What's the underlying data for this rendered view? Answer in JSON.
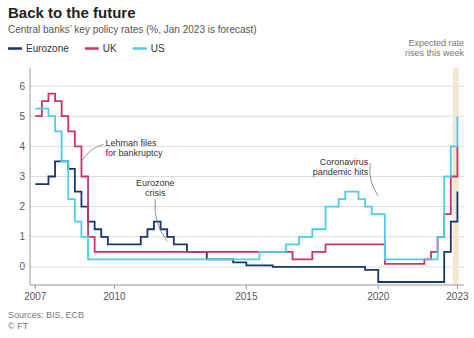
{
  "chart_data": {
    "type": "line",
    "title": "Back to the future",
    "subtitle": "Central banks’ key policy rates (%, Jan 2023 is forecast)",
    "sources": "Sources: BIS, ECB\n© FT",
    "legend": "top",
    "grid": true,
    "line_style": "steps",
    "series": [
      {
        "name": "Eurozone",
        "color": "#1a3668",
        "x": [
          2007.0,
          2007.5,
          2007.75,
          2008.0,
          2008.25,
          2008.5,
          2008.75,
          2009.0,
          2009.25,
          2009.5,
          2009.75,
          2010.0,
          2010.5,
          2011.0,
          2011.25,
          2011.5,
          2011.75,
          2012.0,
          2012.25,
          2012.75,
          2013.0,
          2013.5,
          2014.0,
          2014.5,
          2015.0,
          2016.0,
          2017.0,
          2018.0,
          2019.0,
          2019.5,
          2020.0,
          2021.0,
          2022.0,
          2022.5,
          2022.75,
          2023.0
        ],
        "values": [
          2.75,
          3.0,
          3.5,
          3.5,
          3.25,
          2.5,
          2.0,
          1.5,
          1.25,
          1.0,
          0.75,
          0.75,
          0.75,
          1.0,
          1.25,
          1.5,
          1.25,
          1.0,
          0.75,
          0.5,
          0.5,
          0.25,
          0.25,
          0.15,
          0.05,
          0.0,
          0.0,
          0.0,
          0.0,
          -0.1,
          -0.5,
          -0.5,
          -0.5,
          0.5,
          1.5,
          2.5
        ]
      },
      {
        "name": "UK",
        "color": "#cc3366",
        "x": [
          2007.0,
          2007.25,
          2007.5,
          2007.75,
          2008.0,
          2008.25,
          2008.5,
          2008.75,
          2009.0,
          2009.25,
          2009.5,
          2010.0,
          2011.0,
          2012.0,
          2013.0,
          2014.0,
          2015.0,
          2016.0,
          2016.75,
          2017.5,
          2018.0,
          2018.75,
          2019.0,
          2020.0,
          2020.25,
          2021.0,
          2021.75,
          2022.0,
          2022.25,
          2022.5,
          2022.75,
          2023.0
        ],
        "values": [
          5.0,
          5.5,
          5.75,
          5.5,
          5.0,
          4.5,
          4.0,
          3.0,
          1.0,
          0.5,
          0.5,
          0.5,
          0.5,
          0.5,
          0.5,
          0.5,
          0.5,
          0.5,
          0.25,
          0.5,
          0.75,
          0.75,
          0.75,
          0.75,
          0.1,
          0.1,
          0.25,
          0.5,
          1.0,
          1.75,
          3.0,
          4.0
        ]
      },
      {
        "name": "US",
        "color": "#4ecde4",
        "x": [
          2007.0,
          2007.25,
          2007.5,
          2007.75,
          2008.0,
          2008.25,
          2008.5,
          2008.75,
          2009.0,
          2009.5,
          2010.0,
          2011.0,
          2012.0,
          2013.0,
          2014.0,
          2015.0,
          2015.5,
          2016.0,
          2016.5,
          2017.0,
          2017.5,
          2018.0,
          2018.5,
          2018.75,
          2019.0,
          2019.25,
          2019.5,
          2019.75,
          2020.0,
          2020.25,
          2021.0,
          2022.0,
          2022.25,
          2022.5,
          2022.75,
          2023.0
        ],
        "values": [
          5.25,
          5.25,
          5.0,
          4.5,
          3.5,
          2.25,
          1.5,
          1.0,
          0.25,
          0.25,
          0.25,
          0.25,
          0.25,
          0.25,
          0.25,
          0.25,
          0.5,
          0.5,
          0.75,
          1.0,
          1.25,
          2.0,
          2.25,
          2.5,
          2.5,
          2.25,
          2.0,
          1.75,
          1.75,
          0.25,
          0.25,
          0.25,
          1.0,
          3.0,
          4.0,
          5.0
        ]
      }
    ],
    "xlim": [
      2006.8,
      2023.25
    ],
    "ylim": [
      -0.6,
      6.6
    ],
    "xticks": [
      2007,
      2010,
      2015,
      2020,
      2023
    ],
    "yticks": [
      0,
      1,
      2,
      3,
      4,
      5,
      6
    ],
    "shade": {
      "x0": 2022.83,
      "x1": 2023.05,
      "color": "#f5e8d0",
      "label": "Expected rate\nrises this week"
    },
    "annotations": [
      {
        "text": "Lehman files\nfor bankruptcy",
        "x": 2008.75,
        "y": 3.5
      },
      {
        "text": "Eurozone\ncrisis",
        "x": 2012.0,
        "y": 0.85
      },
      {
        "text": "Coronavirus\npandemic hits",
        "x": 2020.0,
        "y": 2.35
      }
    ]
  }
}
